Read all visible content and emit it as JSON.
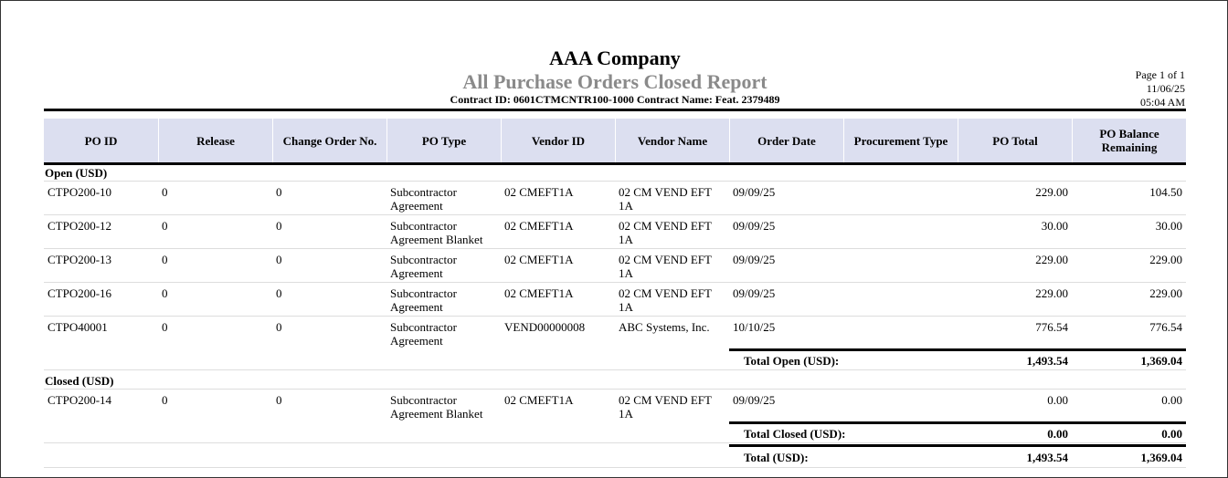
{
  "header": {
    "company": "AAA Company",
    "report_title": "All Purchase Orders Closed Report",
    "contract_line": "Contract ID: 0601CTMCNTR100-1000 Contract Name: Feat. 2379489",
    "page": "Page 1 of 1",
    "date": "11/06/25",
    "time": "05:04 AM"
  },
  "table": {
    "columns": [
      "PO ID",
      "Release",
      "Change Order No.",
      "PO Type",
      "Vendor ID",
      "Vendor Name",
      "Order Date",
      "Procurement Type",
      "PO Total",
      "PO Balance Remaining"
    ],
    "groups": [
      {
        "label": "Open (USD)",
        "rows": [
          [
            "CTPO200-10",
            "0",
            "0",
            "Subcontractor Agreement",
            "02 CMEFT1A",
            "02 CM VEND EFT 1A",
            "09/09/25",
            "",
            "229.00",
            "104.50"
          ],
          [
            "CTPO200-12",
            "0",
            "0",
            "Subcontractor Agreement Blanket",
            "02 CMEFT1A",
            "02 CM VEND EFT 1A",
            "09/09/25",
            "",
            "30.00",
            "30.00"
          ],
          [
            "CTPO200-13",
            "0",
            "0",
            "Subcontractor Agreement",
            "02 CMEFT1A",
            "02 CM VEND EFT 1A",
            "09/09/25",
            "",
            "229.00",
            "229.00"
          ],
          [
            "CTPO200-16",
            "0",
            "0",
            "Subcontractor Agreement",
            "02 CMEFT1A",
            "02 CM VEND EFT 1A",
            "09/09/25",
            "",
            "229.00",
            "229.00"
          ],
          [
            "CTPO40001",
            "0",
            "0",
            "Subcontractor Agreement",
            "VEND00000008",
            "ABC Systems, Inc.",
            "10/10/25",
            "",
            "776.54",
            "776.54"
          ]
        ],
        "total_label": "Total Open (USD):",
        "totals": [
          "1,493.54",
          "1,369.04"
        ]
      },
      {
        "label": "Closed (USD)",
        "rows": [
          [
            "CTPO200-14",
            "0",
            "0",
            "Subcontractor Agreement Blanket",
            "02 CMEFT1A",
            "02 CM VEND EFT 1A",
            "09/09/25",
            "",
            "0.00",
            "0.00"
          ]
        ],
        "total_label": "Total Closed (USD):",
        "totals": [
          "0.00",
          "0.00"
        ]
      }
    ],
    "grand_total_label": "Total (USD):",
    "grand_totals": [
      "1,493.54",
      "1,369.04"
    ]
  }
}
